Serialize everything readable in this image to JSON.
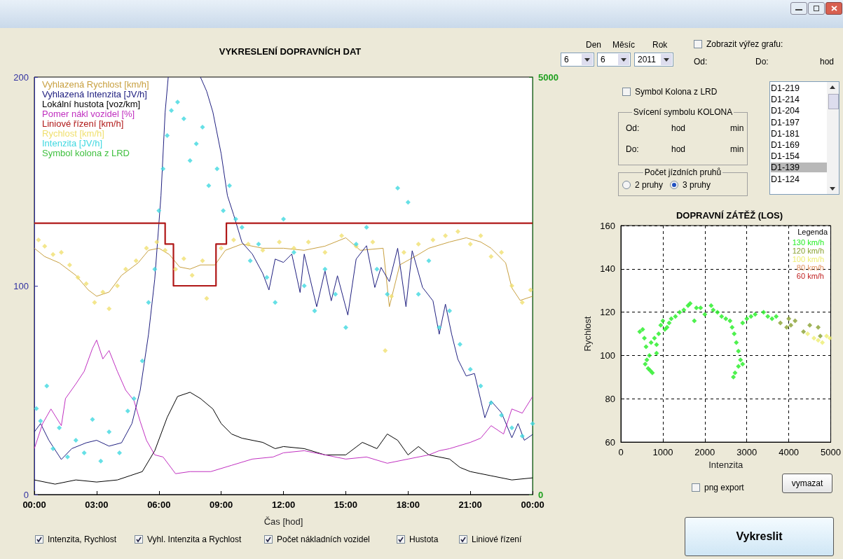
{
  "chart_data": [
    {
      "type": "line",
      "title": "VYKRESLENÍ DOPRAVNÍCH DAT",
      "xlabel": "Čas [hod]",
      "legend": "top left",
      "grid": false,
      "xlim": [
        0,
        24
      ],
      "xticks": [
        {
          "value": 0,
          "label": "00:00"
        },
        {
          "value": 3,
          "label": "03:00"
        },
        {
          "value": 6,
          "label": "06:00"
        },
        {
          "value": 9,
          "label": "09:00"
        },
        {
          "value": 12,
          "label": "12:00"
        },
        {
          "value": 15,
          "label": "15:00"
        },
        {
          "value": 18,
          "label": "18:00"
        },
        {
          "value": 21,
          "label": "21:00"
        },
        {
          "value": 24,
          "label": "00:00"
        }
      ],
      "ylim": [
        0,
        200
      ],
      "yticks": [
        0,
        100,
        200
      ],
      "y2lim": [
        0,
        5000
      ],
      "y2ticks": [
        0,
        5000
      ],
      "series": [
        {
          "name": "Vyhlazená Rychlost [km/h]",
          "color": "#c8a040",
          "marker": "none",
          "x": [
            0,
            0.5,
            1.2,
            2,
            2.6,
            3,
            3.6,
            4.2,
            5,
            5.5,
            6,
            6.5,
            7,
            7.5,
            8,
            8.7,
            9.2,
            10,
            11,
            12,
            13,
            14,
            15,
            15.7,
            16.8,
            17.1,
            17.6,
            18.5,
            19,
            20,
            20.8,
            21.5,
            22,
            22.7,
            23,
            23.4,
            24
          ],
          "values": [
            118,
            114,
            111,
            105,
            98,
            95,
            97,
            105,
            111,
            117,
            118,
            115,
            109,
            108,
            110,
            110,
            117,
            120,
            118,
            118,
            117,
            119,
            123,
            117,
            118,
            90,
            110,
            115,
            118,
            121,
            123,
            121,
            118,
            111,
            99,
            93,
            95
          ]
        },
        {
          "name": "Vyhlazená Intenzita [JV/h]",
          "color": "#202080",
          "marker": "none",
          "axis": "y2",
          "x": [
            0,
            0.3,
            0.7,
            1.3,
            1.8,
            2.5,
            3,
            3.6,
            4.2,
            4.7,
            5.1,
            5.5,
            5.8,
            6.1,
            6.3,
            6.45,
            7,
            8,
            8.3,
            8.6,
            9,
            9.3,
            9.6,
            10,
            10.5,
            11,
            11.3,
            11.6,
            12,
            12.4,
            12.8,
            13,
            13.6,
            14,
            14.3,
            14.6,
            15.1,
            15.5,
            16,
            16.4,
            16.7,
            17.1,
            17.5,
            17.9,
            18.2,
            18.7,
            19.2,
            19.5,
            19.8,
            20.1,
            20.4,
            20.8,
            21.2,
            21.7,
            22,
            22.5,
            23,
            23.3,
            23.6,
            24
          ],
          "values": [
            750,
            850,
            650,
            420,
            550,
            620,
            650,
            580,
            620,
            850,
            1250,
            1920,
            2580,
            3580,
            4580,
            5000,
            null,
            5000,
            4830,
            4580,
            4080,
            3580,
            3350,
            3020,
            2880,
            2650,
            2450,
            2820,
            2780,
            2880,
            2420,
            2880,
            2250,
            2680,
            2320,
            2620,
            2150,
            2820,
            2980,
            2480,
            2720,
            2550,
            2950,
            2250,
            2920,
            2480,
            2320,
            1920,
            2280,
            1920,
            1620,
            1420,
            1450,
            920,
            1120,
            980,
            680,
            850,
            650,
            720
          ]
        },
        {
          "name": "Lokální hustota [voz/km]",
          "color": "#000000",
          "marker": "none",
          "x": [
            0,
            1,
            2,
            3,
            4,
            4.6,
            5.2,
            5.8,
            6.4,
            6.9,
            7.5,
            8,
            8.6,
            9,
            9.5,
            10,
            11,
            11.6,
            12,
            13,
            14,
            15,
            15.8,
            16.5,
            17,
            17.5,
            18,
            18.5,
            19,
            19.5,
            20,
            20.5,
            21,
            22,
            23,
            24
          ],
          "values": [
            7,
            5,
            7,
            6,
            7,
            9,
            11,
            21,
            37,
            47,
            49,
            46,
            41,
            34,
            29,
            27,
            25,
            22,
            23,
            22,
            19,
            19,
            25,
            22,
            29,
            26,
            19,
            23,
            19,
            18,
            17,
            13,
            11,
            9,
            7,
            8
          ]
        },
        {
          "name": "Pomer nákl vozidel [%]",
          "color": "#c030c0",
          "marker": "none",
          "x": [
            0,
            0.4,
            0.8,
            1.3,
            1.5,
            2,
            2.4,
            2.8,
            3,
            3.3,
            3.6,
            4,
            4.4,
            4.8,
            5.1,
            5.4,
            5.8,
            6.2,
            6.8,
            7.5,
            8.5,
            9.5,
            10.5,
            11.5,
            12,
            13,
            14,
            15,
            16,
            17,
            18,
            19,
            19.5,
            20,
            21,
            21.5,
            22,
            22.6,
            23,
            23.5,
            24
          ],
          "values": [
            22,
            34,
            41,
            33,
            46,
            53,
            59,
            70,
            74,
            65,
            69,
            59,
            50,
            45,
            35,
            26,
            19,
            18,
            10,
            11,
            11,
            14,
            17,
            18,
            20,
            21,
            19,
            17,
            18,
            15,
            17,
            19,
            21,
            22,
            25,
            27,
            33,
            29,
            41,
            39,
            47
          ]
        },
        {
          "name": "Liniové řízení [km/h]",
          "type": "step",
          "color": "#b01818",
          "marker": "none",
          "x": [
            0,
            6.3,
            6.7,
            8.75,
            9.25,
            24
          ],
          "values": [
            130,
            120,
            100,
            120,
            130,
            130
          ]
        },
        {
          "name": "Rychlost [km/h]",
          "type": "scatter",
          "color": "#f0e070",
          "marker": "diamond",
          "x": [
            0.2,
            0.5,
            0.9,
            1.3,
            1.7,
            2.1,
            2.5,
            2.9,
            3.3,
            3.6,
            4,
            4.4,
            4.9,
            5.4,
            5.9,
            6.3,
            6.8,
            7.2,
            7.6,
            8.1,
            8.3,
            9,
            9.6,
            10.3,
            11,
            11.8,
            12.5,
            13.2,
            14,
            14.8,
            15.5,
            16.3,
            16.9,
            17.2,
            17.8,
            18.5,
            19.2,
            19.8,
            20.4,
            21,
            21.5,
            22,
            22.5,
            23,
            23.5,
            23.9
          ],
          "values": [
            122,
            119,
            115,
            116,
            110,
            104,
            101,
            92,
            97,
            89,
            100,
            108,
            112,
            118,
            121,
            117,
            108,
            113,
            105,
            112,
            94,
            118,
            122,
            120,
            117,
            121,
            118,
            121,
            116,
            124,
            119,
            121,
            69,
            95,
            116,
            120,
            122,
            124,
            126,
            120,
            124,
            114,
            116,
            100,
            92,
            98
          ]
        },
        {
          "name": "Intenzita [JV/h]",
          "type": "scatter",
          "color": "#40d8e0",
          "marker": "diamond",
          "axis": "y2",
          "x": [
            0.1,
            0.3,
            0.6,
            0.9,
            1.2,
            1.6,
            2,
            2.4,
            2.8,
            3.2,
            3.6,
            4.1,
            4.5,
            4.8,
            5.2,
            5.5,
            5.8,
            6,
            6.2,
            6.4,
            6.6,
            6.9,
            7.2,
            7.5,
            7.8,
            8.1,
            8.4,
            8.8,
            9.1,
            9.4,
            9.7,
            10,
            10.4,
            10.8,
            11.2,
            11.6,
            12,
            12.5,
            13,
            13.5,
            14,
            14.5,
            15,
            15.5,
            16,
            16.5,
            17,
            17.5,
            18,
            18.5,
            19,
            19.5,
            20,
            20.5,
            21,
            21.5,
            22,
            22.5,
            23,
            23.5,
            24
          ],
          "values": [
            1030,
            880,
            1300,
            550,
            800,
            450,
            650,
            500,
            900,
            400,
            750,
            500,
            1000,
            1150,
            1600,
            2300,
            2700,
            3400,
            3900,
            4300,
            4600,
            4700,
            4500,
            4000,
            4200,
            4400,
            3700,
            3900,
            3400,
            3700,
            3300,
            3200,
            2800,
            3000,
            2600,
            2300,
            3300,
            2900,
            2500,
            2200,
            2700,
            2400,
            2000,
            3000,
            3200,
            2700,
            2400,
            3670,
            3500,
            2400,
            2800,
            2000,
            2200,
            1800,
            1500,
            1300,
            1100,
            950,
            800,
            700,
            850
          ]
        },
        {
          "name": "Symbol kolona z LRD",
          "type": "scatter",
          "color": "#40c040",
          "marker": "diamond"
        }
      ]
    },
    {
      "type": "scatter",
      "title": "DOPRAVNÍ ZÁTĚŽ (LOS)",
      "xlabel": "Intenzita",
      "ylabel": "Rychlost",
      "legend": "top right",
      "legend_title": "Legenda",
      "grid": true,
      "marker": "diamond",
      "xlim": [
        0,
        5000
      ],
      "xticks": [
        0,
        1000,
        2000,
        3000,
        4000,
        5000
      ],
      "ylim": [
        60,
        160
      ],
      "yticks": [
        60,
        80,
        100,
        120,
        140,
        160
      ],
      "series": [
        {
          "name": "130 km/h",
          "color": "#22ee22",
          "x": [
            450,
            520,
            560,
            600,
            620,
            580,
            650,
            700,
            750,
            680,
            720,
            800,
            850,
            850,
            900,
            950,
            1000,
            1050,
            1100,
            1150,
            1200,
            1300,
            1400,
            1500,
            1600,
            1650,
            1750,
            1800,
            1900,
            2000,
            2150,
            2200,
            2300,
            2400,
            2500,
            2600,
            2650,
            2700,
            2750,
            2800,
            2850,
            2900,
            2680,
            2720,
            2800,
            2900,
            3000,
            3100,
            3200,
            3400,
            3500,
            3600,
            3700
          ],
          "values": [
            111,
            112,
            108,
            104,
            98,
            96,
            94,
            93,
            92,
            100,
            106,
            108,
            101,
            105,
            110,
            114,
            116,
            112,
            113,
            115,
            117,
            118,
            120,
            121,
            123,
            124,
            116,
            122,
            122,
            119,
            123,
            121,
            120,
            118,
            117,
            116,
            113,
            110,
            106,
            102,
            98,
            96,
            90,
            92,
            95,
            115,
            117,
            118,
            119,
            120,
            118,
            117,
            118
          ]
        },
        {
          "name": "120 km/h",
          "color": "#88a030",
          "x": [
            3800,
            3950,
            4000,
            4050,
            4150,
            4350,
            4500,
            4700,
            4750
          ],
          "values": [
            115,
            113,
            117,
            114,
            116,
            111,
            114,
            113,
            109
          ]
        },
        {
          "name": "100 km/h",
          "color": "#eeee70",
          "x": [
            4450,
            4600,
            4700,
            4800,
            4900,
            4980
          ],
          "values": [
            110,
            108,
            107,
            106,
            109,
            108
          ]
        },
        {
          "name": "80 km/h",
          "color": "#e09060"
        },
        {
          "name": "60 km/h",
          "color": "#c02020"
        }
      ]
    },
    {
      "type": "other",
      "annotations": [
        "Den",
        "Měsíc",
        "Rok",
        "6",
        "6",
        "2011",
        "Zobrazit výřez grafu:",
        "Od:",
        "Do:",
        "hod",
        "Symbol Kolona z LRD",
        "Svícení symbolu KOLONA",
        "Od:",
        "hod",
        "min",
        "Do:",
        "hod",
        "min",
        "Počet jízdních pruhů",
        "2 pruhy",
        "3 pruhy",
        "D1-219",
        "D1-214",
        "D1-204",
        "D1-197",
        "D1-181",
        "D1-169",
        "D1-154",
        "D1-139",
        "D1-124",
        "png export",
        "vymazat",
        "Vykreslit",
        "Intenzita, Rychlost",
        "Vyhl. Intenzita a Rychlost",
        "Počet nákladních vozidel",
        "Hustota",
        "Liniové řízení"
      ]
    }
  ]
}
